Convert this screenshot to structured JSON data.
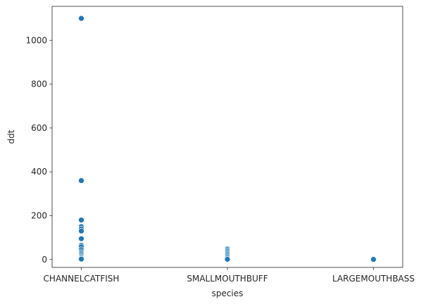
{
  "chart_data": {
    "type": "scatter",
    "title": "",
    "xlabel": "species",
    "ylabel": "ddt",
    "categories": [
      "CHANNELCATFISH",
      "SMALLMOUTHBUFF",
      "LARGEMOUTHBASS"
    ],
    "ylim": [
      -36,
      1155
    ],
    "yticks": [
      0,
      200,
      400,
      600,
      800,
      1000
    ],
    "grid": false,
    "legend": "none",
    "color": "#1f77b4",
    "points": [
      {
        "x": "CHANNELCATFISH",
        "y": 1100
      },
      {
        "x": "CHANNELCATFISH",
        "y": 360
      },
      {
        "x": "CHANNELCATFISH",
        "y": 180
      },
      {
        "x": "CHANNELCATFISH",
        "y": 150
      },
      {
        "x": "CHANNELCATFISH",
        "y": 140
      },
      {
        "x": "CHANNELCATFISH",
        "y": 130
      },
      {
        "x": "CHANNELCATFISH",
        "y": 95
      },
      {
        "x": "CHANNELCATFISH",
        "y": 65
      },
      {
        "x": "CHANNELCATFISH",
        "y": 58
      },
      {
        "x": "CHANNELCATFISH",
        "y": 45
      },
      {
        "x": "CHANNELCATFISH",
        "y": 35
      },
      {
        "x": "CHANNELCATFISH",
        "y": 28
      },
      {
        "x": "CHANNELCATFISH",
        "y": 22
      },
      {
        "x": "CHANNELCATFISH",
        "y": 15
      },
      {
        "x": "CHANNELCATFISH",
        "y": 10
      },
      {
        "x": "CHANNELCATFISH",
        "y": 5
      },
      {
        "x": "CHANNELCATFISH",
        "y": 2
      },
      {
        "x": "SMALLMOUTHBUFF",
        "y": 48
      },
      {
        "x": "SMALLMOUTHBUFF",
        "y": 42
      },
      {
        "x": "SMALLMOUTHBUFF",
        "y": 36
      },
      {
        "x": "SMALLMOUTHBUFF",
        "y": 30
      },
      {
        "x": "SMALLMOUTHBUFF",
        "y": 24
      },
      {
        "x": "SMALLMOUTHBUFF",
        "y": 18
      },
      {
        "x": "SMALLMOUTHBUFF",
        "y": 12
      },
      {
        "x": "SMALLMOUTHBUFF",
        "y": 6
      },
      {
        "x": "SMALLMOUTHBUFF",
        "y": 1
      },
      {
        "x": "LARGEMOUTHBASS",
        "y": 6
      },
      {
        "x": "LARGEMOUTHBASS",
        "y": 4
      },
      {
        "x": "LARGEMOUTHBASS",
        "y": 2
      },
      {
        "x": "LARGEMOUTHBASS",
        "y": 1
      },
      {
        "x": "LARGEMOUTHBASS",
        "y": 0.5
      }
    ]
  }
}
